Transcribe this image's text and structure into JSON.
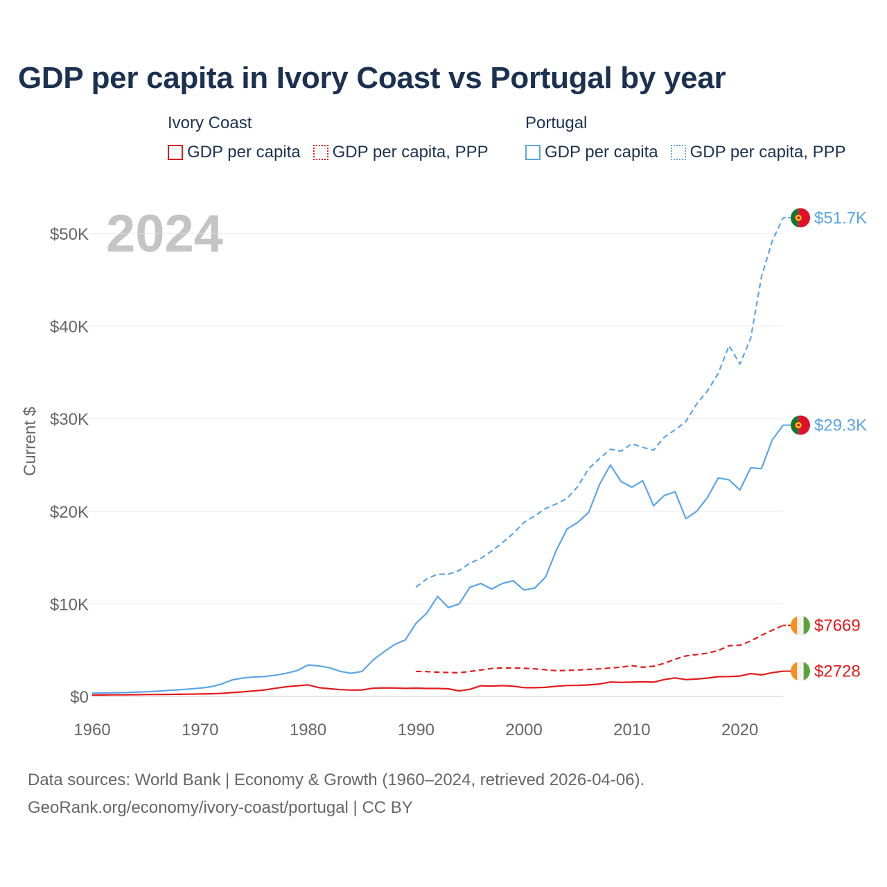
{
  "chart_data": {
    "type": "line",
    "title": "GDP per capita in Ivory Coast vs Portugal by year",
    "xlabel": "",
    "ylabel": "Current $",
    "xlim": [
      1960,
      2024
    ],
    "ylim": [
      0,
      52000
    ],
    "x_ticks": [
      1960,
      1970,
      1980,
      1990,
      2000,
      2010,
      2020
    ],
    "x_tick_labels": [
      "1960",
      "1970",
      "1980",
      "1990",
      "2000",
      "2010",
      "2020"
    ],
    "y_ticks": [
      0,
      10000,
      20000,
      30000,
      40000,
      50000
    ],
    "y_tick_labels": [
      "$0",
      "$10K",
      "$20K",
      "$30K",
      "$40K",
      "$50K"
    ],
    "grid": true,
    "legend_position": "top",
    "year_watermark": "2024",
    "legend": {
      "groups": [
        {
          "country": "Ivory Coast",
          "items": [
            "GDP per capita",
            "GDP per capita, PPP"
          ]
        },
        {
          "country": "Portugal",
          "items": [
            "GDP per capita",
            "GDP per capita, PPP"
          ]
        }
      ]
    },
    "series": [
      {
        "name": "Portugal GDP per capita, PPP",
        "color": "#5ba5e8",
        "dash": "dashed",
        "start_year": 1990,
        "values": [
          11800,
          12700,
          13200,
          13200,
          13600,
          14400,
          14900,
          15700,
          16600,
          17600,
          18800,
          19500,
          20300,
          20800,
          21400,
          22700,
          24600,
          25700,
          26700,
          26500,
          27300,
          26900,
          26600,
          28000,
          28800,
          29700,
          31600,
          33000,
          34900,
          37900,
          35900,
          38700,
          45300,
          49200,
          51700
        ],
        "end_label": "$51.7K"
      },
      {
        "name": "Portugal GDP per capita",
        "color": "#5ba5e8",
        "dash": "solid",
        "start_year": 1960,
        "values": [
          360,
          380,
          400,
          420,
          460,
          500,
          560,
          640,
          720,
          800,
          900,
          1050,
          1350,
          1800,
          2000,
          2100,
          2150,
          2300,
          2500,
          2800,
          3400,
          3300,
          3100,
          2700,
          2500,
          2700,
          3900,
          4800,
          5600,
          6100,
          7900,
          9000,
          10800,
          9600,
          10000,
          11800,
          12200,
          11600,
          12200,
          12500,
          11500,
          11700,
          12900,
          15800,
          18100,
          18800,
          19900,
          22900,
          25000,
          23200,
          22600,
          23300,
          20600,
          21700,
          22100,
          19200,
          20000,
          21500,
          23600,
          23400,
          22300,
          24700,
          24600,
          27700,
          29300
        ],
        "end_label": "$29.3K"
      },
      {
        "name": "Ivory Coast GDP per capita, PPP",
        "color": "#e41a1c",
        "dash": "dashed",
        "start_year": 1990,
        "values": [
          2700,
          2680,
          2620,
          2580,
          2560,
          2700,
          2850,
          3020,
          3080,
          3080,
          3040,
          2980,
          2880,
          2780,
          2810,
          2860,
          2930,
          2980,
          3080,
          3160,
          3320,
          3150,
          3260,
          3580,
          4020,
          4380,
          4520,
          4680,
          4960,
          5480,
          5530,
          5980,
          6600,
          7150,
          7669
        ],
        "end_label": "$7669"
      },
      {
        "name": "Ivory Coast GDP per capita",
        "color": "#e41a1c",
        "dash": "solid",
        "start_year": 1960,
        "values": [
          150,
          160,
          170,
          175,
          190,
          200,
          210,
          220,
          235,
          250,
          270,
          290,
          330,
          420,
          500,
          600,
          700,
          880,
          1050,
          1150,
          1250,
          950,
          830,
          730,
          690,
          700,
          880,
          920,
          910,
          870,
          900,
          860,
          860,
          820,
          600,
          770,
          1150,
          1120,
          1170,
          1110,
          950,
          940,
          980,
          1100,
          1180,
          1200,
          1240,
          1340,
          1560,
          1520,
          1540,
          1580,
          1540,
          1820,
          2000,
          1820,
          1880,
          1980,
          2130,
          2150,
          2200,
          2470,
          2330,
          2570,
          2728
        ],
        "end_label": "$2728"
      }
    ]
  },
  "footer": {
    "line1": "Data sources: World Bank | Economy & Growth (1960–2024, retrieved 2026-04-06).",
    "line2": "GeoRank.org/economy/ivory-coast/portugal | CC BY"
  },
  "colors": {
    "ivory_coast": "#e41a1c",
    "portugal": "#5ba5e8",
    "title": "#1c3150",
    "axis_text": "#666666",
    "watermark": "#c4c4c4",
    "grid": "#e6e6e6"
  },
  "icons": {
    "portugal_flag": "portugal-flag-icon",
    "ivory_coast_flag": "ivory-coast-flag-icon"
  }
}
